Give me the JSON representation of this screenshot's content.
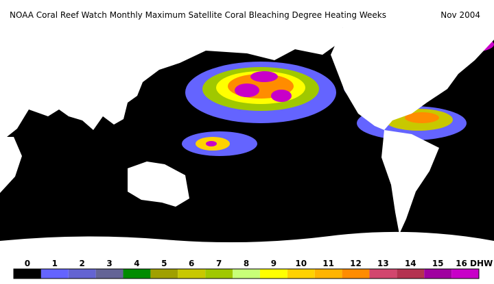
{
  "header": {
    "title": "NOAA Coral Reef Watch Monthly Maximum Satellite Coral Bleaching Degree Heating Weeks",
    "date": "Nov 2004"
  },
  "legend": {
    "labels": [
      "0",
      "1",
      "2",
      "3",
      "4",
      "5",
      "6",
      "7",
      "8",
      "9",
      "10",
      "11",
      "12",
      "13",
      "14",
      "15",
      "16 DHW"
    ],
    "colors": [
      "#000000",
      "#6464ff",
      "#6464d2",
      "#646496",
      "#008c00",
      "#a0a000",
      "#c8c800",
      "#a0c800",
      "#c8ff78",
      "#ffff00",
      "#ffd200",
      "#ffb400",
      "#ff8c00",
      "#d2466e",
      "#b43250",
      "#a000a0",
      "#c800c8"
    ]
  }
}
